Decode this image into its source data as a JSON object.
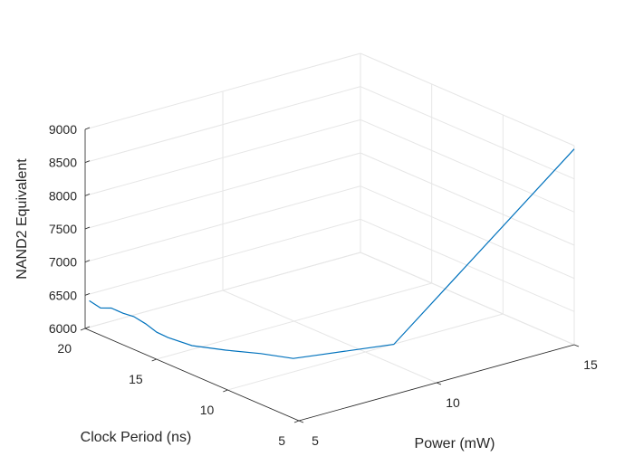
{
  "chart_data": {
    "type": "line3d",
    "title": "",
    "xlabel": "Power (mW)",
    "ylabel": "Clock Period (ns)",
    "zlabel": "NAND2 Equivalent",
    "xlim": [
      5,
      15
    ],
    "ylim": [
      5,
      20
    ],
    "zlim": [
      6000,
      9000
    ],
    "xticks": [
      5,
      10,
      15
    ],
    "yticks": [
      5,
      10,
      15,
      20
    ],
    "zticks": [
      6000,
      6500,
      7000,
      7500,
      8000,
      8500,
      9000
    ],
    "grid": true,
    "series": [
      {
        "color": "#0072bd",
        "x": [
          5.15,
          5.3,
          5.43,
          5.6,
          5.73,
          5.9,
          6.05,
          6.2,
          6.55,
          7.0,
          7.5,
          7.9,
          8.3,
          10.0,
          15.0
        ],
        "y": [
          20.0,
          19.5,
          19.0,
          18.5,
          18.0,
          17.5,
          17.0,
          16.5,
          15.5,
          14.0,
          12.5,
          11.0,
          10.0,
          8.0,
          5.0
        ],
        "z": [
          6400,
          6320,
          6350,
          6300,
          6280,
          6200,
          6100,
          6050,
          5980,
          6000,
          6030,
          6050,
          6150,
          6300,
          8950
        ]
      }
    ]
  }
}
